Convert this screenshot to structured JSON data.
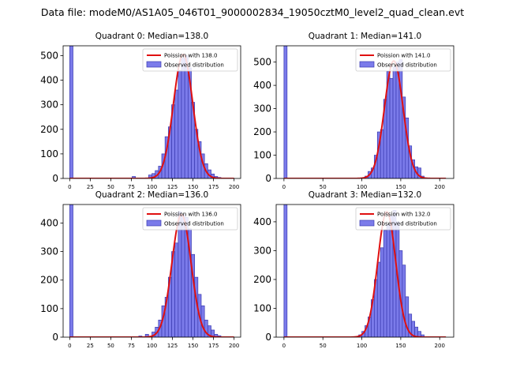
{
  "figure": {
    "suptitle": "Data file: modeM0/AS1A05_046T01_9000002834_19050cztM0_level2_quad_clean.evt"
  },
  "colors": {
    "bar_fill": "#7b7bea",
    "bar_edge": "#3a3ab0",
    "fit_line": "#e01010",
    "axis": "#000000"
  },
  "chart_data": [
    {
      "type": "bar",
      "title": "Quadrant 0: Median=138.0",
      "xlim": [
        -8,
        208
      ],
      "ylim": [
        0,
        540
      ],
      "xticks": [
        0,
        25,
        50,
        75,
        100,
        125,
        150,
        175,
        200
      ],
      "yticks": [
        0,
        100,
        200,
        300,
        400,
        500
      ],
      "bin_width": 4,
      "bins": [
        [
          0,
          540
        ],
        [
          76,
          8
        ],
        [
          96,
          14
        ],
        [
          100,
          20
        ],
        [
          104,
          32
        ],
        [
          108,
          50
        ],
        [
          112,
          100
        ],
        [
          116,
          170
        ],
        [
          120,
          210
        ],
        [
          124,
          300
        ],
        [
          128,
          360
        ],
        [
          132,
          440
        ],
        [
          136,
          490
        ],
        [
          140,
          500
        ],
        [
          144,
          450
        ],
        [
          148,
          310
        ],
        [
          152,
          200
        ],
        [
          156,
          150
        ],
        [
          160,
          100
        ],
        [
          164,
          60
        ],
        [
          168,
          35
        ],
        [
          172,
          18
        ],
        [
          176,
          8
        ],
        [
          180,
          4
        ]
      ],
      "fit": {
        "median": 138.0,
        "peak": 505,
        "x_range": [
          0,
          200
        ]
      },
      "legend": {
        "fit_label": "Poission with 138.0",
        "obs_label": "Observed distribution",
        "placement": "top-right"
      }
    },
    {
      "type": "bar",
      "title": "Quadrant 1: Median=141.0",
      "xlim": [
        -10,
        218
      ],
      "ylim": [
        0,
        570
      ],
      "xticks": [
        0,
        50,
        100,
        150,
        200
      ],
      "yticks": [
        0,
        100,
        200,
        300,
        400,
        500
      ],
      "bin_width": 4,
      "bins": [
        [
          0,
          570
        ],
        [
          104,
          10
        ],
        [
          108,
          30
        ],
        [
          112,
          45
        ],
        [
          116,
          100
        ],
        [
          120,
          200
        ],
        [
          124,
          210
        ],
        [
          128,
          340
        ],
        [
          132,
          460
        ],
        [
          136,
          430
        ],
        [
          140,
          480
        ],
        [
          144,
          500
        ],
        [
          148,
          510
        ],
        [
          152,
          350
        ],
        [
          156,
          260
        ],
        [
          160,
          140
        ],
        [
          164,
          80
        ],
        [
          168,
          50
        ],
        [
          172,
          45
        ],
        [
          176,
          10
        ]
      ],
      "fit": {
        "median": 141.0,
        "peak": 505,
        "x_range": [
          0,
          208
        ]
      },
      "legend": {
        "fit_label": "Poission with 141.0",
        "obs_label": "Observed distribution",
        "placement": "top-right"
      }
    },
    {
      "type": "bar",
      "title": "Quadrant 2: Median=136.0",
      "xlim": [
        -8,
        208
      ],
      "ylim": [
        0,
        465
      ],
      "xticks": [
        0,
        25,
        50,
        75,
        100,
        125,
        150,
        175,
        200
      ],
      "yticks": [
        0,
        100,
        200,
        300,
        400
      ],
      "bin_width": 4,
      "bins": [
        [
          0,
          465
        ],
        [
          84,
          4
        ],
        [
          92,
          10
        ],
        [
          100,
          18
        ],
        [
          104,
          35
        ],
        [
          108,
          60
        ],
        [
          112,
          110
        ],
        [
          116,
          140
        ],
        [
          120,
          210
        ],
        [
          124,
          300
        ],
        [
          128,
          330
        ],
        [
          132,
          440
        ],
        [
          136,
          430
        ],
        [
          140,
          420
        ],
        [
          144,
          380
        ],
        [
          148,
          290
        ],
        [
          152,
          210
        ],
        [
          156,
          150
        ],
        [
          160,
          110
        ],
        [
          164,
          60
        ],
        [
          168,
          40
        ],
        [
          172,
          25
        ],
        [
          176,
          10
        ],
        [
          180,
          5
        ]
      ],
      "fit": {
        "median": 136.0,
        "peak": 430,
        "x_range": [
          0,
          200
        ]
      },
      "legend": {
        "fit_label": "Poission with 136.0",
        "obs_label": "Observed distribution",
        "placement": "top-right"
      }
    },
    {
      "type": "bar",
      "title": "Quadrant 3: Median=132.0",
      "xlim": [
        -10,
        218
      ],
      "ylim": [
        0,
        460
      ],
      "xticks": [
        0,
        50,
        100,
        150,
        200
      ],
      "yticks": [
        0,
        100,
        200,
        300,
        400
      ],
      "bin_width": 4,
      "bins": [
        [
          0,
          460
        ],
        [
          96,
          8
        ],
        [
          100,
          20
        ],
        [
          104,
          40
        ],
        [
          108,
          70
        ],
        [
          112,
          130
        ],
        [
          116,
          200
        ],
        [
          120,
          260
        ],
        [
          124,
          310
        ],
        [
          128,
          370
        ],
        [
          132,
          390
        ],
        [
          136,
          420
        ],
        [
          140,
          440
        ],
        [
          144,
          400
        ],
        [
          148,
          300
        ],
        [
          152,
          250
        ],
        [
          156,
          140
        ],
        [
          160,
          80
        ],
        [
          164,
          55
        ],
        [
          168,
          35
        ],
        [
          172,
          20
        ],
        [
          176,
          8
        ]
      ],
      "fit": {
        "median": 132.0,
        "peak": 435,
        "x_range": [
          0,
          208
        ]
      },
      "legend": {
        "fit_label": "Poission with 132.0",
        "obs_label": "Observed distribution",
        "placement": "top-right"
      }
    }
  ]
}
